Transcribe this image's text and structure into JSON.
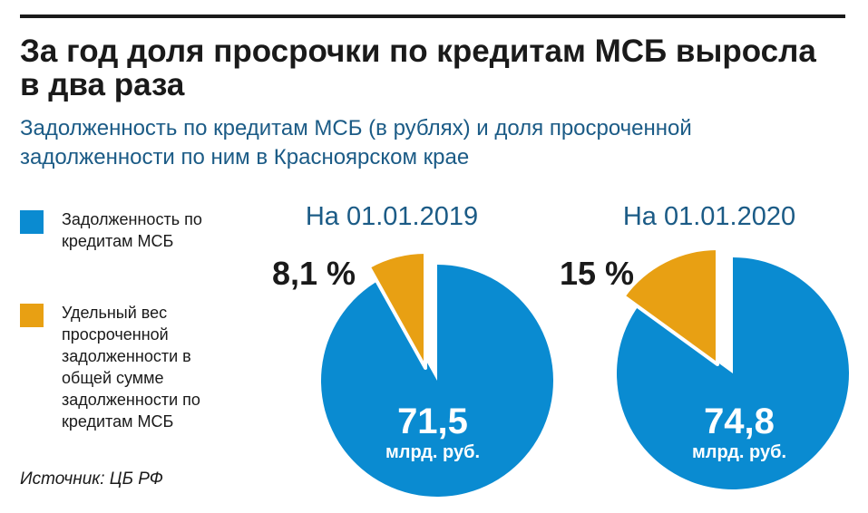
{
  "title": "За год доля просрочки по кредитам МСБ выросла в два раза",
  "subtitle": "Задолженность по кредитам МСБ (в рублях) и доля просроченной задолженности по ним в Красноярском крае",
  "legend": [
    {
      "label": "Задолженность по кредитам МСБ",
      "color": "#0a8bd1"
    },
    {
      "label": "Удельный вес просроченной задолженности в общей сумме задолженности по кредитам МСБ",
      "color": "#e8a013"
    }
  ],
  "source": "Источник: ЦБ РФ",
  "chart_data": {
    "type": "pie",
    "charts": [
      {
        "heading": "На 01.01.2019",
        "total_value": "71,5",
        "total_unit": "млрд. руб.",
        "overdue_share": 8.1,
        "overdue_label": "8,1 %"
      },
      {
        "heading": "На 01.01.2020",
        "total_value": "74,8",
        "total_unit": "млрд. руб.",
        "overdue_share": 15,
        "overdue_label": "15 %"
      }
    ],
    "colors": {
      "debt": "#0a8bd1",
      "overdue": "#e8a013"
    }
  }
}
